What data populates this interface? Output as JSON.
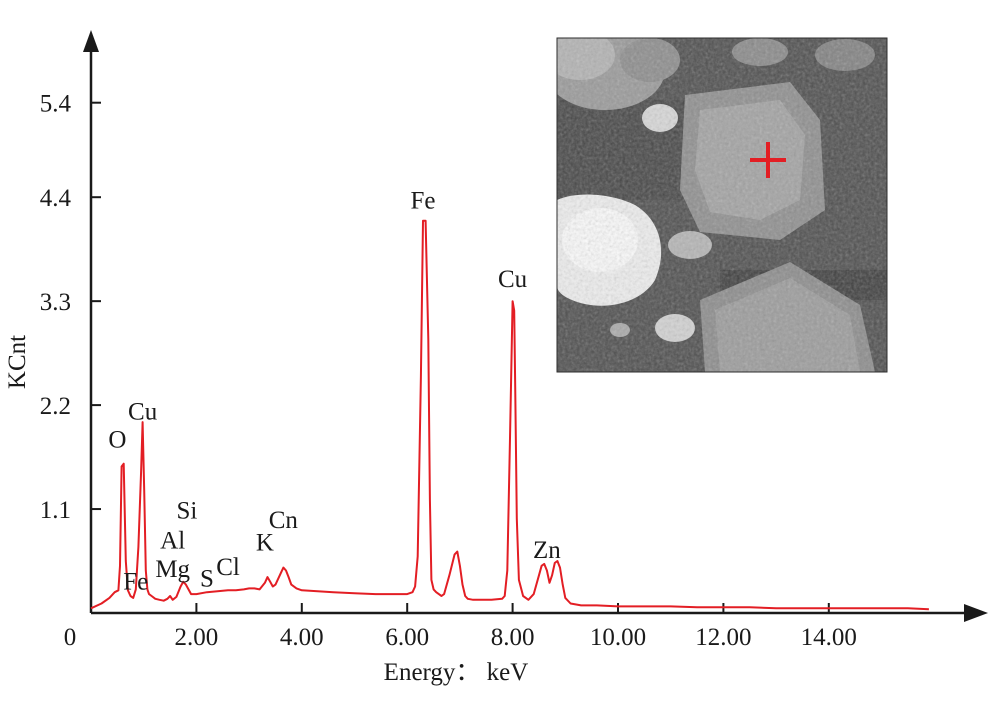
{
  "chart_data": {
    "type": "line",
    "xlabel": "Energy： keV",
    "ylabel": "KCnt",
    "x_ticks": [
      "0",
      "2.00",
      "4.00",
      "6.00",
      "8.00",
      "10.00",
      "12.00",
      "14.00"
    ],
    "x_tick_values": [
      0,
      2,
      4,
      6,
      8,
      10,
      12,
      14
    ],
    "y_ticks": [
      "1.1",
      "2.2",
      "3.3",
      "4.4",
      "5.4"
    ],
    "y_tick_values": [
      1.1,
      2.2,
      3.3,
      4.4,
      5.4
    ],
    "xlim": [
      0,
      17
    ],
    "ylim": [
      0,
      5.9
    ],
    "grid": false,
    "series": [
      {
        "color": "#e31e24",
        "x": [
          0,
          0.2,
          0.35,
          0.45,
          0.52,
          0.55,
          0.58,
          0.62,
          0.66,
          0.7,
          0.75,
          0.8,
          0.85,
          0.9,
          0.95,
          0.98,
          1.01,
          1.04,
          1.07,
          1.1,
          1.15,
          1.22,
          1.3,
          1.38,
          1.45,
          1.5,
          1.55,
          1.62,
          1.7,
          1.75,
          1.8,
          1.85,
          1.9,
          2.0,
          2.2,
          2.4,
          2.6,
          2.75,
          2.9,
          3.0,
          3.1,
          3.2,
          3.3,
          3.35,
          3.4,
          3.45,
          3.5,
          3.6,
          3.65,
          3.7,
          3.75,
          3.8,
          3.9,
          4.0,
          4.3,
          4.6,
          5.0,
          5.4,
          5.8,
          6.0,
          6.1,
          6.15,
          6.2,
          6.26,
          6.3,
          6.35,
          6.4,
          6.43,
          6.46,
          6.5,
          6.55,
          6.6,
          6.65,
          6.7,
          6.8,
          6.9,
          6.95,
          7.0,
          7.05,
          7.1,
          7.15,
          7.25,
          7.4,
          7.6,
          7.8,
          7.85,
          7.9,
          7.95,
          8.0,
          8.03,
          8.05,
          8.08,
          8.12,
          8.2,
          8.3,
          8.4,
          8.5,
          8.55,
          8.6,
          8.65,
          8.7,
          8.75,
          8.8,
          8.85,
          8.9,
          8.95,
          9.0,
          9.1,
          9.3,
          9.6,
          10.0,
          10.5,
          11.0,
          11.5,
          12.0,
          12.5,
          13.0,
          13.5,
          14.0,
          14.5,
          15.0,
          15.5,
          15.9
        ],
        "y": [
          0.05,
          0.1,
          0.16,
          0.22,
          0.24,
          0.5,
          1.55,
          1.58,
          0.55,
          0.24,
          0.18,
          0.16,
          0.25,
          0.7,
          1.5,
          2.02,
          1.3,
          0.45,
          0.25,
          0.2,
          0.18,
          0.15,
          0.14,
          0.13,
          0.15,
          0.18,
          0.14,
          0.17,
          0.28,
          0.33,
          0.3,
          0.25,
          0.2,
          0.2,
          0.22,
          0.23,
          0.24,
          0.24,
          0.25,
          0.26,
          0.26,
          0.25,
          0.32,
          0.38,
          0.33,
          0.28,
          0.3,
          0.42,
          0.48,
          0.45,
          0.38,
          0.3,
          0.26,
          0.24,
          0.23,
          0.22,
          0.21,
          0.2,
          0.2,
          0.2,
          0.22,
          0.28,
          0.6,
          2.5,
          4.15,
          4.15,
          2.9,
          1.2,
          0.35,
          0.25,
          0.22,
          0.2,
          0.18,
          0.2,
          0.4,
          0.62,
          0.65,
          0.5,
          0.3,
          0.18,
          0.15,
          0.14,
          0.14,
          0.14,
          0.15,
          0.18,
          0.45,
          1.85,
          3.3,
          3.2,
          2.4,
          1.0,
          0.35,
          0.18,
          0.14,
          0.2,
          0.4,
          0.5,
          0.52,
          0.45,
          0.32,
          0.4,
          0.53,
          0.55,
          0.48,
          0.3,
          0.16,
          0.1,
          0.08,
          0.08,
          0.07,
          0.07,
          0.07,
          0.06,
          0.06,
          0.06,
          0.05,
          0.05,
          0.05,
          0.05,
          0.05,
          0.05,
          0.04
        ]
      }
    ],
    "annotations": [
      {
        "text": "O",
        "x": 0.5,
        "y": 1.75
      },
      {
        "text": "Cu",
        "x": 0.98,
        "y": 2.05
      },
      {
        "text": "Fe",
        "x": 0.85,
        "y": 0.25
      },
      {
        "text": "Mg",
        "x": 1.55,
        "y": 0.38
      },
      {
        "text": "Al",
        "x": 1.55,
        "y": 0.68
      },
      {
        "text": "Si",
        "x": 1.82,
        "y": 1.0
      },
      {
        "text": "S",
        "x": 2.2,
        "y": 0.28
      },
      {
        "text": "Cl",
        "x": 2.6,
        "y": 0.4
      },
      {
        "text": "K",
        "x": 3.3,
        "y": 0.66
      },
      {
        "text": "Cn",
        "x": 3.65,
        "y": 0.9
      },
      {
        "text": "Fe",
        "x": 6.3,
        "y": 4.28
      },
      {
        "text": "Cu",
        "x": 8.0,
        "y": 3.45
      },
      {
        "text": "Zn",
        "x": 8.65,
        "y": 0.58
      }
    ]
  },
  "inset": {
    "type": "electron micrograph",
    "marker": "+",
    "marker_color": "#e31e24"
  }
}
